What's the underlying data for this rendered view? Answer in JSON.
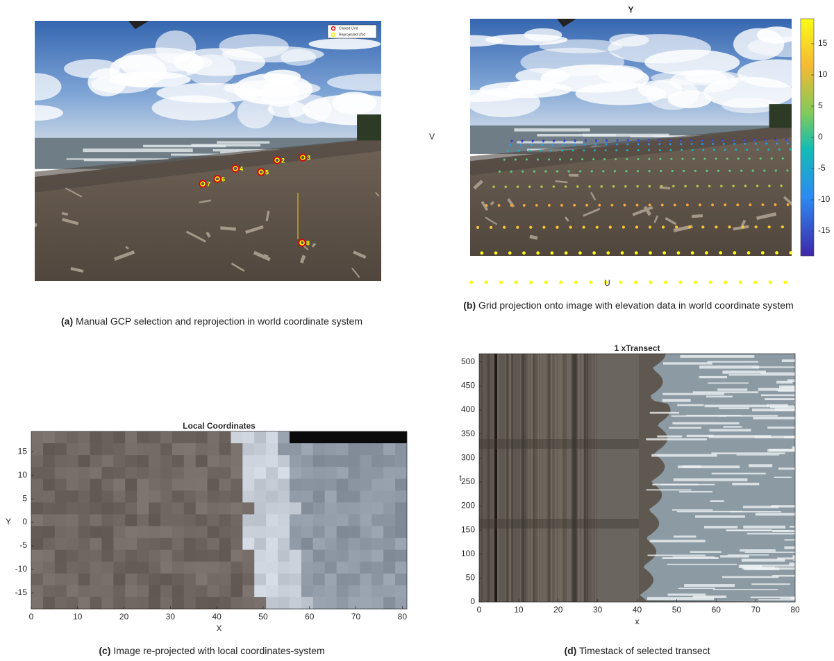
{
  "panels": [
    {
      "label": "(a)",
      "caption": "Manual GCP selection and reprojection in world coordinate system",
      "legend": [
        "Clicked UVd",
        "Reprojected UVd"
      ],
      "gcp_labels": [
        "3",
        "2",
        "4",
        "5",
        "6",
        "7",
        "8"
      ]
    },
    {
      "title": "Y",
      "xlabel": "U",
      "ylabel": "V",
      "colorbar": {
        "lim": [
          -19,
          19
        ],
        "ticks": [
          -15,
          -10,
          -5,
          0,
          5,
          10,
          15
        ]
      },
      "label": "(b)",
      "caption": "Grid projection onto image with elevation data in world coordinate system"
    },
    {
      "title": "Local Coordinates",
      "xlabel": "X",
      "ylabel": "Y",
      "xlim": [
        0,
        81
      ],
      "xticks": [
        0,
        10,
        20,
        30,
        40,
        50,
        60,
        70,
        80
      ],
      "ylim": [
        -18.4,
        19.3
      ],
      "yticks": [
        -15,
        -10,
        -5,
        0,
        5,
        10,
        15
      ],
      "label": "(c)",
      "caption": "Image re-projected with local coordinates-system"
    },
    {
      "title": "1 xTransect",
      "xlabel": "x",
      "ylabel": "t",
      "xlim": [
        0,
        80
      ],
      "xticks": [
        0,
        10,
        20,
        30,
        40,
        50,
        60,
        70,
        80
      ],
      "ylim": [
        0,
        517
      ],
      "yticks": [
        0,
        50,
        100,
        150,
        200,
        250,
        300,
        350,
        400,
        450,
        500
      ],
      "label": "(d)",
      "caption": "Timestack of selected transect"
    }
  ]
}
